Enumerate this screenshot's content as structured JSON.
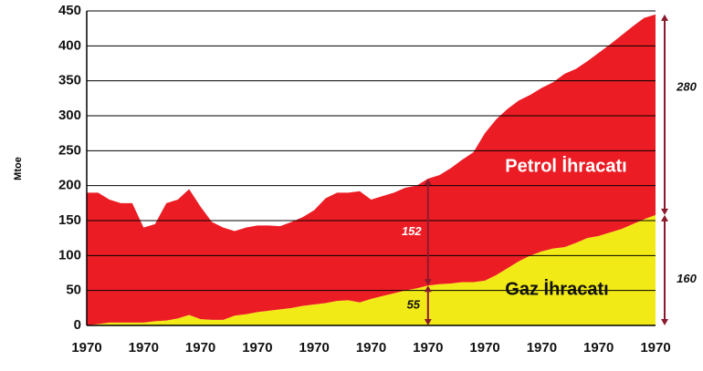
{
  "chart_data": {
    "type": "area",
    "stacked": true,
    "y_label": "Mtoe",
    "categories": [
      "1970",
      null,
      null,
      null,
      null,
      "1970",
      null,
      null,
      null,
      null,
      "1970",
      null,
      null,
      null,
      null,
      "1970",
      null,
      null,
      null,
      null,
      "1970",
      null,
      null,
      null,
      null,
      "1970",
      null,
      null,
      null,
      null,
      "1970",
      null,
      null,
      null,
      null,
      "1970",
      null,
      null,
      null,
      null,
      "1970",
      null,
      null,
      null,
      null,
      "1970",
      null,
      null,
      null,
      null,
      "1970"
    ],
    "series": [
      {
        "name": "Gaz İhracatı",
        "color": "#f2ea17",
        "values": [
          0,
          2,
          4,
          4,
          4,
          4,
          6,
          7,
          10,
          15,
          9,
          8,
          8,
          14,
          16,
          19,
          21,
          23,
          25,
          28,
          30,
          32,
          35,
          36,
          33,
          38,
          42,
          46,
          50,
          53,
          57,
          59,
          60,
          62,
          62,
          64,
          72,
          82,
          92,
          100,
          106,
          110,
          112,
          118,
          125,
          128,
          133,
          138,
          145,
          152,
          158
        ]
      },
      {
        "name": "Petrol İhracatı",
        "color": "#ec1c24",
        "values": [
          190,
          188,
          176,
          171,
          171,
          136,
          139,
          168,
          170,
          180,
          161,
          140,
          132,
          121,
          124,
          124,
          122,
          119,
          123,
          127,
          135,
          150,
          155,
          154,
          159,
          142,
          143,
          144,
          147,
          147,
          153,
          156,
          165,
          175,
          186,
          211,
          223,
          228,
          230,
          230,
          234,
          238,
          248,
          249,
          253,
          262,
          269,
          277,
          283,
          288,
          287
        ]
      }
    ],
    "ylim": [
      0,
      450
    ],
    "yticks": [
      0,
      50,
      100,
      150,
      200,
      250,
      300,
      350,
      400,
      450
    ],
    "grid": true,
    "annotations": [
      "152",
      "55",
      "280",
      "160"
    ]
  }
}
